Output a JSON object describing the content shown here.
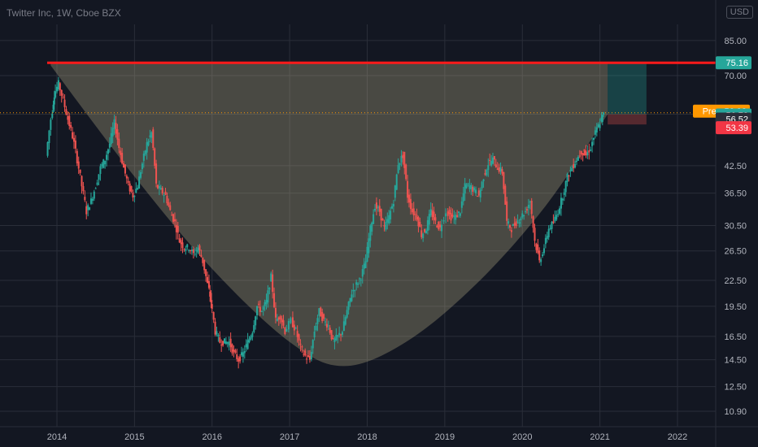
{
  "header": {
    "title": "Twitter Inc, 1W, Cboe BZX",
    "currency": "USD"
  },
  "chart_data": {
    "type": "candlestick",
    "title": "Twitter Inc, 1W, Cboe BZX",
    "y_scale": "log",
    "grid": true,
    "x_ticks": [
      "2014",
      "2015",
      "2016",
      "2017",
      "2018",
      "2019",
      "2020",
      "2021",
      "2022"
    ],
    "y_ticks": [
      "85.00",
      "70.00",
      "56.52",
      "42.50",
      "36.50",
      "30.50",
      "26.50",
      "22.50",
      "19.50",
      "16.50",
      "14.50",
      "12.50",
      "10.90"
    ],
    "price_close": [
      [
        2013.88,
        44.9
      ],
      [
        2013.94,
        55
      ],
      [
        2013.98,
        63
      ],
      [
        2014.04,
        67
      ],
      [
        2014.1,
        61
      ],
      [
        2014.16,
        55
      ],
      [
        2014.22,
        50
      ],
      [
        2014.28,
        44
      ],
      [
        2014.34,
        38
      ],
      [
        2014.4,
        33
      ],
      [
        2014.46,
        35
      ],
      [
        2014.52,
        38
      ],
      [
        2014.58,
        42
      ],
      [
        2014.64,
        44
      ],
      [
        2014.7,
        48
      ],
      [
        2014.76,
        54
      ],
      [
        2014.82,
        47
      ],
      [
        2014.88,
        42
      ],
      [
        2014.94,
        38
      ],
      [
        2015.0,
        36
      ],
      [
        2015.06,
        38
      ],
      [
        2015.12,
        43
      ],
      [
        2015.18,
        48
      ],
      [
        2015.24,
        51
      ],
      [
        2015.3,
        38
      ],
      [
        2015.36,
        37
      ],
      [
        2015.42,
        36
      ],
      [
        2015.48,
        33
      ],
      [
        2015.54,
        31
      ],
      [
        2015.6,
        28
      ],
      [
        2015.66,
        27
      ],
      [
        2015.72,
        27
      ],
      [
        2015.78,
        26
      ],
      [
        2015.84,
        27
      ],
      [
        2015.9,
        25
      ],
      [
        2015.96,
        22
      ],
      [
        2016.0,
        20
      ],
      [
        2016.06,
        17
      ],
      [
        2016.12,
        16
      ],
      [
        2016.18,
        16
      ],
      [
        2016.24,
        16
      ],
      [
        2016.3,
        15
      ],
      [
        2016.36,
        14.5
      ],
      [
        2016.42,
        15
      ],
      [
        2016.48,
        16
      ],
      [
        2016.54,
        17
      ],
      [
        2016.6,
        19.5
      ],
      [
        2016.66,
        19
      ],
      [
        2016.72,
        20
      ],
      [
        2016.78,
        23
      ],
      [
        2016.84,
        18
      ],
      [
        2016.9,
        18.5
      ],
      [
        2016.96,
        17
      ],
      [
        2017.04,
        18
      ],
      [
        2017.1,
        17
      ],
      [
        2017.16,
        15.5
      ],
      [
        2017.22,
        14.8
      ],
      [
        2017.28,
        14.5
      ],
      [
        2017.34,
        17
      ],
      [
        2017.4,
        19
      ],
      [
        2017.46,
        18
      ],
      [
        2017.52,
        17.5
      ],
      [
        2017.58,
        16
      ],
      [
        2017.64,
        16.5
      ],
      [
        2017.7,
        17
      ],
      [
        2017.76,
        19
      ],
      [
        2017.82,
        21
      ],
      [
        2017.88,
        22
      ],
      [
        2017.94,
        23
      ],
      [
        2018.0,
        25
      ],
      [
        2018.06,
        30
      ],
      [
        2018.12,
        34
      ],
      [
        2018.18,
        33
      ],
      [
        2018.24,
        30
      ],
      [
        2018.3,
        32
      ],
      [
        2018.36,
        35
      ],
      [
        2018.42,
        43
      ],
      [
        2018.48,
        45
      ],
      [
        2018.54,
        36
      ],
      [
        2018.6,
        33
      ],
      [
        2018.66,
        32
      ],
      [
        2018.72,
        29
      ],
      [
        2018.78,
        30
      ],
      [
        2018.84,
        33
      ],
      [
        2018.9,
        31
      ],
      [
        2018.96,
        30
      ],
      [
        2019.04,
        33
      ],
      [
        2019.1,
        32
      ],
      [
        2019.16,
        32
      ],
      [
        2019.22,
        33
      ],
      [
        2019.28,
        38
      ],
      [
        2019.34,
        38
      ],
      [
        2019.4,
        37
      ],
      [
        2019.46,
        36
      ],
      [
        2019.52,
        40
      ],
      [
        2019.58,
        43
      ],
      [
        2019.64,
        44
      ],
      [
        2019.7,
        42
      ],
      [
        2019.76,
        41
      ],
      [
        2019.82,
        31
      ],
      [
        2019.88,
        30
      ],
      [
        2019.94,
        31
      ],
      [
        2020.0,
        32
      ],
      [
        2020.06,
        33
      ],
      [
        2020.12,
        35
      ],
      [
        2020.18,
        28
      ],
      [
        2020.24,
        25
      ],
      [
        2020.3,
        27
      ],
      [
        2020.36,
        30
      ],
      [
        2020.42,
        31
      ],
      [
        2020.48,
        33
      ],
      [
        2020.54,
        36
      ],
      [
        2020.6,
        40
      ],
      [
        2020.66,
        42
      ],
      [
        2020.72,
        44
      ],
      [
        2020.78,
        46
      ],
      [
        2020.84,
        45
      ],
      [
        2020.9,
        47
      ],
      [
        2020.96,
        51
      ],
      [
        2021.02,
        54
      ],
      [
        2021.06,
        56.5
      ]
    ],
    "cup_curve": [
      [
        2013.92,
        74
      ],
      [
        2015.0,
        40
      ],
      [
        2016.0,
        24
      ],
      [
        2017.0,
        16
      ],
      [
        2017.7,
        14
      ],
      [
        2018.5,
        16
      ],
      [
        2019.4,
        22
      ],
      [
        2020.3,
        34
      ],
      [
        2021.1,
        56.5
      ]
    ],
    "resistance_line": 75.16,
    "price_line": 56.98,
    "long_position": {
      "entry": 56.52,
      "target": 75.16,
      "stop": 53.39
    },
    "labels": [
      {
        "text": "75.16",
        "value": 75.16,
        "color": "#26a69a"
      },
      {
        "text": "Pre · 56.98",
        "value": 56.98,
        "color": "#ff9800"
      },
      {
        "text": "56.78",
        "value": 56.78,
        "color": "#26a69a"
      },
      {
        "text": "56.52",
        "value": 56.52,
        "color": "#2a2e39"
      },
      {
        "text": "53.39",
        "value": 53.39,
        "color": "#f23645"
      }
    ],
    "colors": {
      "up": "#26a69a",
      "down": "#ef5350",
      "line": "#ff1a1a",
      "cup": "#b9b08a"
    }
  }
}
